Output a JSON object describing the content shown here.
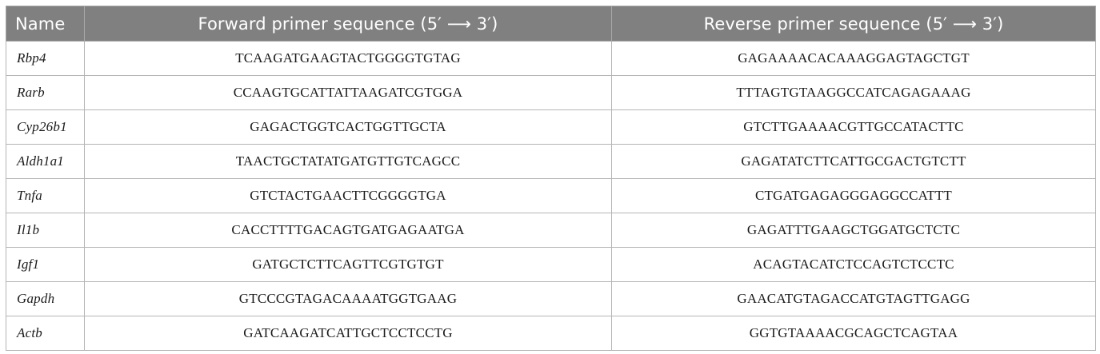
{
  "table": {
    "headers": {
      "name": "Name",
      "forward": "Forward primer sequence (5′ ⟶ 3′)",
      "reverse": "Reverse primer sequence (5′ ⟶ 3′)"
    },
    "rows": [
      {
        "gene": "Rbp4",
        "forward": "TCAAGATGAAGTACTGGGGTGTAG",
        "reverse": "GAGAAAACACAAAGGAGTAGCTGT"
      },
      {
        "gene": "Rarb",
        "forward": "CCAAGTGCATTATTAAGATCGTGGA",
        "reverse": "TTTAGTGTAAGGCCATCAGAGAAAG"
      },
      {
        "gene": "Cyp26b1",
        "forward": "GAGACTGGTCACTGGTTGCTA",
        "reverse": "GTCTTGAAAACGTTGCCATACTTC"
      },
      {
        "gene": "Aldh1a1",
        "forward": "TAACTGCTATATGATGTTGTCAGCC",
        "reverse": "GAGATATCTTCATTGCGACTGTCTT"
      },
      {
        "gene": "Tnfa",
        "forward": "GTCTACTGAACTTCGGGGTGA",
        "reverse": "CTGATGAGAGGGAGGCCATTT"
      },
      {
        "gene": "Il1b",
        "forward": "CACCTTTTGACAGTGATGAGAATGA",
        "reverse": "GAGATTTGAAGCTGGATGCTCTC"
      },
      {
        "gene": "Igf1",
        "forward": "GATGCTCTTCAGTTCGTGTGT",
        "reverse": "ACAGTACATCTCCAGTCTCCTC"
      },
      {
        "gene": "Gapdh",
        "forward": "GTCCCGTAGACAAAATGGTGAAG",
        "reverse": "GAACATGTAGACCATGTAGTTGAGG"
      },
      {
        "gene": "Actb",
        "forward": "GATCAAGATCATTGCTCCTCCTG",
        "reverse": "GGTGTAAAACGCAGCTCAGTAA"
      }
    ]
  }
}
